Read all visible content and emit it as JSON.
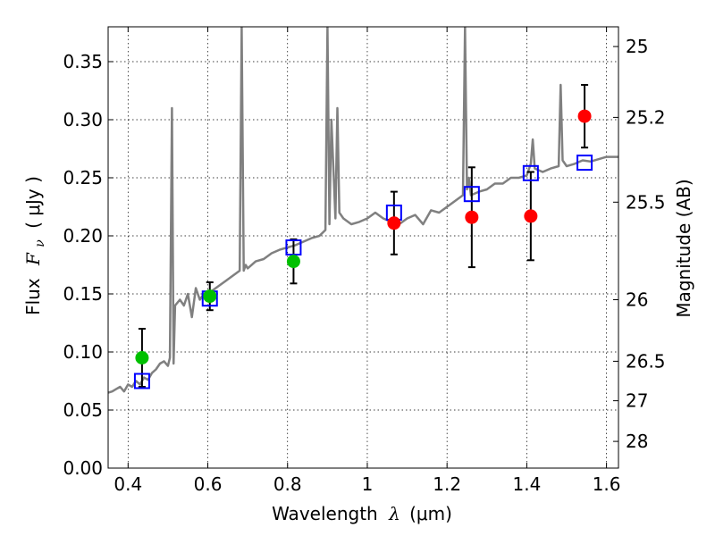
{
  "chart_data": {
    "type": "scatter",
    "xlabel": "Wavelength",
    "xlabel_symbol": "λ",
    "xlabel_unit": "(μm)",
    "ylabel_prefix": "Flux",
    "ylabel_symbol": "F",
    "ylabel_subscript": "ν",
    "ylabel_unit": "( μJy )",
    "y2label": "Magnitude (AB)",
    "xlim": [
      0.35,
      1.63
    ],
    "ylim": [
      0.0,
      0.38
    ],
    "grid": true,
    "xticks": [
      0.4,
      0.6,
      0.8,
      1.0,
      1.2,
      1.4,
      1.6
    ],
    "xtick_labels": [
      "0.4",
      "0.6",
      "0.8",
      "1",
      "1.2",
      "1.4",
      "1.6"
    ],
    "yticks": [
      0.0,
      0.05,
      0.1,
      0.15,
      0.2,
      0.25,
      0.3,
      0.35
    ],
    "ytick_labels": [
      "0.00",
      "0.05",
      "0.10",
      "0.15",
      "0.20",
      "0.25",
      "0.30",
      "0.35"
    ],
    "right_ticks": [
      {
        "flux": 0.363,
        "label": "25"
      },
      {
        "flux": 0.302,
        "label": "25.2"
      },
      {
        "flux": 0.229,
        "label": "25.5"
      },
      {
        "flux": 0.145,
        "label": "26"
      },
      {
        "flux": 0.092,
        "label": "26.5"
      },
      {
        "flux": 0.058,
        "label": "27"
      },
      {
        "flux": 0.023,
        "label": "28"
      }
    ],
    "colors": {
      "model": "#808080",
      "green": "#00c000",
      "red": "#ff0000",
      "box": "#0000ff",
      "errorbar": "#000000"
    },
    "series": [
      {
        "name": "model spectrum",
        "kind": "line",
        "color": "#808080",
        "x": [
          0.35,
          0.36,
          0.37,
          0.38,
          0.39,
          0.4,
          0.41,
          0.42,
          0.43,
          0.44,
          0.45,
          0.46,
          0.47,
          0.48,
          0.49,
          0.5,
          0.505,
          0.51,
          0.514,
          0.518,
          0.53,
          0.54,
          0.55,
          0.56,
          0.57,
          0.58,
          0.59,
          0.6,
          0.62,
          0.64,
          0.66,
          0.68,
          0.685,
          0.69,
          0.695,
          0.7,
          0.72,
          0.74,
          0.76,
          0.78,
          0.8,
          0.82,
          0.84,
          0.86,
          0.88,
          0.895,
          0.9,
          0.905,
          0.91,
          0.92,
          0.925,
          0.93,
          0.94,
          0.96,
          0.98,
          1.0,
          1.02,
          1.04,
          1.06,
          1.08,
          1.1,
          1.12,
          1.14,
          1.16,
          1.18,
          1.2,
          1.22,
          1.24,
          1.245,
          1.25,
          1.255,
          1.26,
          1.28,
          1.3,
          1.32,
          1.34,
          1.36,
          1.38,
          1.4,
          1.41,
          1.415,
          1.42,
          1.44,
          1.46,
          1.48,
          1.485,
          1.49,
          1.5,
          1.52,
          1.54,
          1.56,
          1.58,
          1.6,
          1.63
        ],
        "y": [
          0.065,
          0.066,
          0.068,
          0.07,
          0.066,
          0.072,
          0.07,
          0.075,
          0.072,
          0.078,
          0.076,
          0.082,
          0.085,
          0.09,
          0.092,
          0.088,
          0.095,
          0.31,
          0.09,
          0.14,
          0.145,
          0.14,
          0.15,
          0.13,
          0.155,
          0.145,
          0.15,
          0.15,
          0.155,
          0.16,
          0.165,
          0.17,
          0.38,
          0.17,
          0.175,
          0.172,
          0.178,
          0.18,
          0.185,
          0.188,
          0.19,
          0.192,
          0.195,
          0.198,
          0.2,
          0.205,
          0.38,
          0.21,
          0.3,
          0.215,
          0.31,
          0.22,
          0.215,
          0.21,
          0.212,
          0.215,
          0.22,
          0.215,
          0.212,
          0.21,
          0.215,
          0.218,
          0.21,
          0.222,
          0.22,
          0.225,
          0.23,
          0.235,
          0.38,
          0.24,
          0.25,
          0.235,
          0.238,
          0.24,
          0.245,
          0.245,
          0.25,
          0.25,
          0.252,
          0.262,
          0.283,
          0.258,
          0.255,
          0.258,
          0.26,
          0.33,
          0.265,
          0.26,
          0.262,
          0.265,
          0.264,
          0.266,
          0.268,
          0.268
        ]
      },
      {
        "name": "green points",
        "kind": "scatter",
        "color": "#00c000",
        "points": [
          {
            "x": 0.435,
            "y": 0.095,
            "err": 0.025
          },
          {
            "x": 0.605,
            "y": 0.148,
            "err": 0.012
          },
          {
            "x": 0.815,
            "y": 0.178,
            "err": 0.019
          }
        ]
      },
      {
        "name": "red points",
        "kind": "scatter",
        "color": "#ff0000",
        "points": [
          {
            "x": 1.067,
            "y": 0.211,
            "err": 0.027
          },
          {
            "x": 1.262,
            "y": 0.216,
            "err": 0.043
          },
          {
            "x": 1.41,
            "y": 0.217,
            "err": 0.038
          },
          {
            "x": 1.545,
            "y": 0.303,
            "err": 0.027
          }
        ]
      },
      {
        "name": "model bands",
        "kind": "box",
        "color": "#0000ff",
        "points": [
          {
            "x": 0.435,
            "y": 0.075
          },
          {
            "x": 0.605,
            "y": 0.146
          },
          {
            "x": 0.815,
            "y": 0.19
          },
          {
            "x": 1.067,
            "y": 0.22
          },
          {
            "x": 1.262,
            "y": 0.236
          },
          {
            "x": 1.41,
            "y": 0.254
          },
          {
            "x": 1.545,
            "y": 0.263
          }
        ]
      }
    ]
  }
}
